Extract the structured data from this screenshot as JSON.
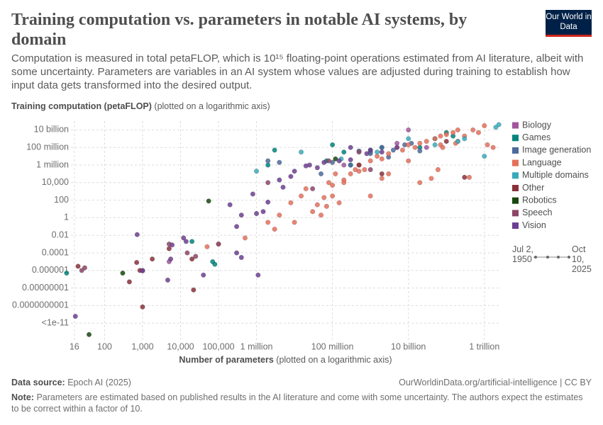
{
  "chart_data": {
    "type": "scatter",
    "title": "Training computation vs. parameters in notable AI systems, by domain",
    "subtitle": "Computation is measured in total petaFLOP, which is 10¹⁵ floating-point operations estimated from AI literature, albeit with some uncertainty. Parameters are variables in an AI system whose values are adjusted during training to establish how input data gets transformed into the desired output.",
    "y_label": "Training computation (petaFLOP)",
    "y_label_note": "(plotted on a logarithmic axis)",
    "x_label": "Number of parameters",
    "x_label_note": "(plotted on a logarithmic axis)",
    "source_label": "Data source:",
    "source": "Epoch AI (2025)",
    "url": "OurWorldinData.org/artificial-intelligence | CC BY",
    "note_label": "Note:",
    "note": "Parameters are estimated based on published results in the AI literature and come with some uncertainty. The authors expect the estimates to be correct within a factor of 10.",
    "logo": "Our World in Data",
    "time_range": [
      "Jul 2, 1950",
      "Oct 10, 2025"
    ],
    "x_scale": "log",
    "y_scale": "log",
    "grid": true,
    "legend": "right",
    "xlim": [
      13,
      2600000000000
    ],
    "ylim": [
      1e-14,
      100000000000
    ],
    "xticks": [
      16,
      100,
      {
        "value": 1000,
        "label": "1,000"
      },
      {
        "value": 10000,
        "label": "10,000"
      },
      {
        "value": 100000,
        "label": "100,000"
      },
      {
        "value": 1000000,
        "label": "1 million"
      },
      {
        "value": 100000000,
        "label": "100 million"
      },
      {
        "value": 10000000000,
        "label": "10 billion"
      },
      {
        "value": 1000000000000,
        "label": "1 trillion"
      }
    ],
    "yticks": [
      {
        "value": 10000000000,
        "label": "10 billion"
      },
      {
        "value": 100000000,
        "label": "100 million"
      },
      {
        "value": 1000000,
        "label": "1 million"
      },
      {
        "value": 10000,
        "label": "10,000"
      },
      100,
      1,
      0.01,
      0.0001,
      1e-06,
      {
        "value": 1e-08,
        "label": "0.00000001"
      },
      {
        "value": 1e-10,
        "label": "0.0000000001"
      },
      {
        "value": 1e-12,
        "label": "<1e-11"
      }
    ],
    "series": [
      {
        "name": "Biology",
        "color": "#a2559c",
        "x": [
          5000,
          200000000,
          1000000000,
          30000000000,
          5000000000,
          10000000000
        ],
        "values": [
          1e-05,
          1000000,
          30000000,
          100000000,
          300000000,
          10000000000
        ]
      },
      {
        "name": "Games",
        "color": "#00847e",
        "x": [
          10,
          80000,
          2000000,
          3000000,
          70000000,
          100000000,
          200000000,
          300000000,
          1000000000,
          2000000000,
          20000000000,
          50000000000,
          150000000000,
          100000000000,
          70000,
          20000
        ],
        "values": [
          5e-07,
          5e-06,
          1000000,
          50000000,
          3000000,
          200000000,
          30000000,
          1000000,
          50000000,
          100000000,
          100000000,
          1000000000,
          2000000000,
          5000000000,
          1e-05,
          0.002
        ]
      },
      {
        "name": "Image generation",
        "color": "#4c6a9c",
        "x": [
          2000000,
          4000000,
          50000000,
          100000000,
          300000000,
          500000000,
          1000000000,
          2000000000,
          4000000000,
          8000000000,
          12000000000,
          20000000000,
          3000000000
        ],
        "values": [
          3000000,
          2000000,
          100000,
          2000000,
          1000000,
          40000000,
          20000000,
          100000000,
          50000000,
          200000000,
          300000000,
          40000000,
          8000000
        ]
      },
      {
        "name": "Language",
        "color": "#e56e5a",
        "x": [
          8000000,
          15000000,
          20000000,
          30000000,
          40000000,
          50000000,
          60000000,
          80000000,
          100000000,
          120000000,
          150000000,
          200000000,
          300000000,
          400000000,
          500000000,
          700000000,
          1000000000,
          1500000000,
          2000000000,
          3000000000,
          5000000000,
          7000000000,
          10000000000,
          15000000000,
          20000000000,
          30000000000,
          50000000000,
          70000000000,
          100000000000,
          150000000000,
          200000000000,
          300000000000,
          500000000000,
          700000000000,
          1200000000000,
          1700000000000,
          200000000000,
          175000000000,
          70000000000,
          40000000000,
          20000000000,
          10000000000,
          3000000000,
          1000000000,
          2000000000,
          500000000,
          200000000,
          100000000,
          70000000,
          3000000,
          2000000,
          500000,
          100000,
          50000,
          4000000,
          10000000,
          80000000000,
          1000000000000,
          400000000000,
          60000000000
        ],
        "values": [
          50,
          300,
          2000,
          5,
          30,
          2,
          200,
          10000,
          5000,
          100000,
          50,
          20000,
          100000,
          300000,
          1000000,
          300000,
          3000000,
          10000000,
          5000000,
          20000000,
          100000000,
          50000000,
          200000000,
          100000000,
          300000000,
          500000000,
          1000000000,
          2000000000,
          3000000000,
          5000000000,
          10000000000,
          2000000000,
          10000000000,
          5000000000,
          200000000,
          100000000,
          500000000,
          300000000,
          200000000,
          30000,
          10000,
          3000000,
          100000,
          300,
          30000,
          200000,
          10000,
          300,
          20,
          0.05,
          0.3,
          0.005,
          0.001,
          0.0005,
          2,
          0.3,
          100000000,
          30000000000,
          40000,
          300000
        ]
      },
      {
        "name": "Multiple domains",
        "color": "#38aaba",
        "x": [
          1000000,
          15000000,
          170000000,
          1500000000,
          10000000000,
          300000000000,
          1000000000000,
          2000000000000,
          2400000000000,
          200000000000,
          50000000000
        ],
        "values": [
          200000,
          30000000,
          5000000,
          30000000,
          1000000000,
          1000000000,
          10000000,
          20000000000,
          40000000000,
          500000000,
          200000000
        ]
      },
      {
        "name": "Other",
        "color": "#883039",
        "x": [
          20,
          450,
          700,
          850,
          1800,
          5000,
          20000,
          22000,
          1000,
          500000000,
          2000000000,
          100000000000,
          300000000000
        ],
        "values": [
          3e-06,
          5e-08,
          8e-06,
          1e-06,
          2e-05,
          0.0003,
          2e-05,
          6e-09,
          7e-11,
          1000000,
          100000,
          500000000,
          40000
        ]
      },
      {
        "name": "Robotics",
        "color": "#18470f",
        "x": [
          39,
          300,
          55000,
          120000000
        ],
        "values": [
          5e-14,
          5e-07,
          80,
          5000000
        ]
      },
      {
        "name": "Speech",
        "color": "#8c4569",
        "x": [
          25,
          30,
          1000,
          5000,
          15000,
          25000,
          100000,
          2000000,
          30000000,
          80000000,
          500000000,
          1000000000
        ],
        "values": [
          1e-06,
          2e-06,
          1e-06,
          0.001,
          0.0001,
          4e-05,
          0.001,
          10000,
          2000,
          3000000,
          30000000,
          300000
        ]
      },
      {
        "name": "Vision",
        "color": "#6d3e91",
        "x": [
          17,
          720,
          1000,
          4600,
          5500,
          14000,
          6000,
          12000,
          40000,
          300000,
          400000,
          1100000,
          200000,
          800000,
          1500000,
          4000000,
          8000000,
          10000000,
          20000000,
          25000000,
          40000000,
          60000000,
          150000000,
          300000000,
          800000000,
          2000000000,
          5000000000,
          300000000,
          1000000000,
          400000,
          300000,
          1000000,
          2000000,
          5000000
        ],
        "values": [
          6e-12,
          0.012,
          9e-07,
          8e-08,
          2e-05,
          0.002,
          0.0008,
          0.005,
          3e-07,
          0.0001,
          3e-05,
          3e-07,
          30,
          500,
          5,
          20000,
          50000,
          200000,
          800000,
          1000000,
          500000,
          2000000,
          3000000,
          4000000,
          20000000,
          30000000,
          100000000,
          100000000,
          50000000,
          2,
          0.1,
          3,
          60,
          3000
        ]
      }
    ]
  }
}
